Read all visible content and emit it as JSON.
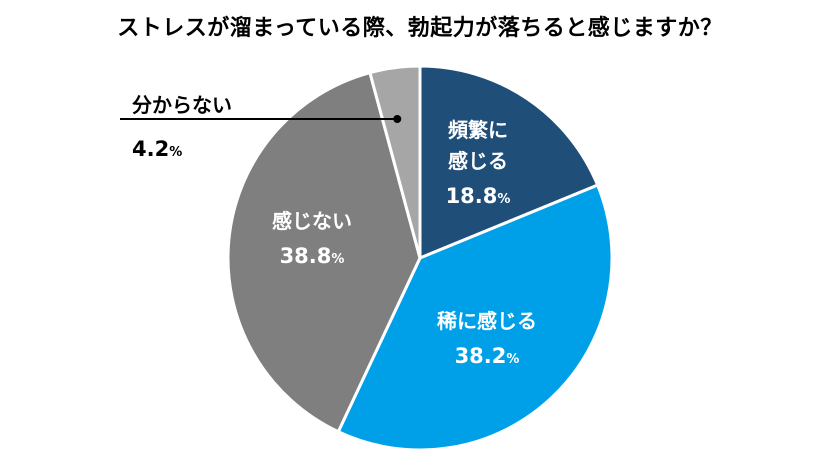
{
  "chart_data": {
    "type": "pie",
    "title": "ストレスが溜まっている際、勃起力が落ちると感じますか？",
    "unit": "%",
    "slices": [
      {
        "label_lines": [
          "頻繁に",
          "感じる"
        ],
        "value": 18.8,
        "value_text": "18.8",
        "color": "#1f4e79"
      },
      {
        "label_lines": [
          "稀に感じる"
        ],
        "value": 38.2,
        "value_text": "38.2",
        "color": "#00a0e9"
      },
      {
        "label_lines": [
          "感じない"
        ],
        "value": 38.8,
        "value_text": "38.8",
        "color": "#7f7f7f"
      },
      {
        "label_lines": [
          "分からない"
        ],
        "value": 4.2,
        "value_text": "4.2",
        "color": "#a6a6a6"
      }
    ]
  }
}
